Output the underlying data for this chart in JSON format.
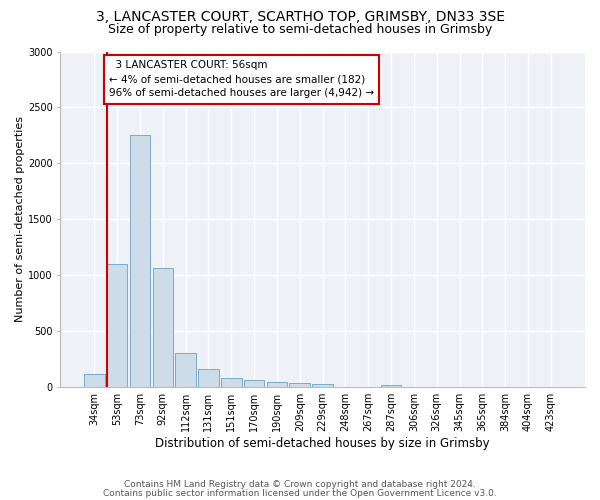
{
  "title1": "3, LANCASTER COURT, SCARTHO TOP, GRIMSBY, DN33 3SE",
  "title2": "Size of property relative to semi-detached houses in Grimsby",
  "xlabel": "Distribution of semi-detached houses by size in Grimsby",
  "ylabel": "Number of semi-detached properties",
  "footnote1": "Contains HM Land Registry data © Crown copyright and database right 2024.",
  "footnote2": "Contains public sector information licensed under the Open Government Licence v3.0.",
  "annotation_line1": "  3 LANCASTER COURT: 56sqm",
  "annotation_line2": "← 4% of semi-detached houses are smaller (182)",
  "annotation_line3": "96% of semi-detached houses are larger (4,942) →",
  "bar_labels": [
    "34sqm",
    "53sqm",
    "73sqm",
    "92sqm",
    "112sqm",
    "131sqm",
    "151sqm",
    "170sqm",
    "190sqm",
    "209sqm",
    "229sqm",
    "248sqm",
    "267sqm",
    "287sqm",
    "306sqm",
    "326sqm",
    "345sqm",
    "365sqm",
    "384sqm",
    "404sqm",
    "423sqm"
  ],
  "bar_values": [
    115,
    1105,
    2255,
    1065,
    305,
    160,
    85,
    60,
    50,
    35,
    25,
    0,
    0,
    20,
    0,
    0,
    0,
    0,
    0,
    0,
    0
  ],
  "bar_color": "#ccdce8",
  "bar_edge_color": "#7aaac8",
  "marker_color": "#cc0000",
  "ylim": [
    0,
    3000
  ],
  "yticks": [
    0,
    500,
    1000,
    1500,
    2000,
    2500,
    3000
  ],
  "background_color": "#eef2f7",
  "grid_color": "#ffffff",
  "title1_fontsize": 10,
  "title2_fontsize": 9,
  "xlabel_fontsize": 8.5,
  "ylabel_fontsize": 8,
  "tick_fontsize": 7,
  "annotation_fontsize": 7.5,
  "footnote_fontsize": 6.5
}
